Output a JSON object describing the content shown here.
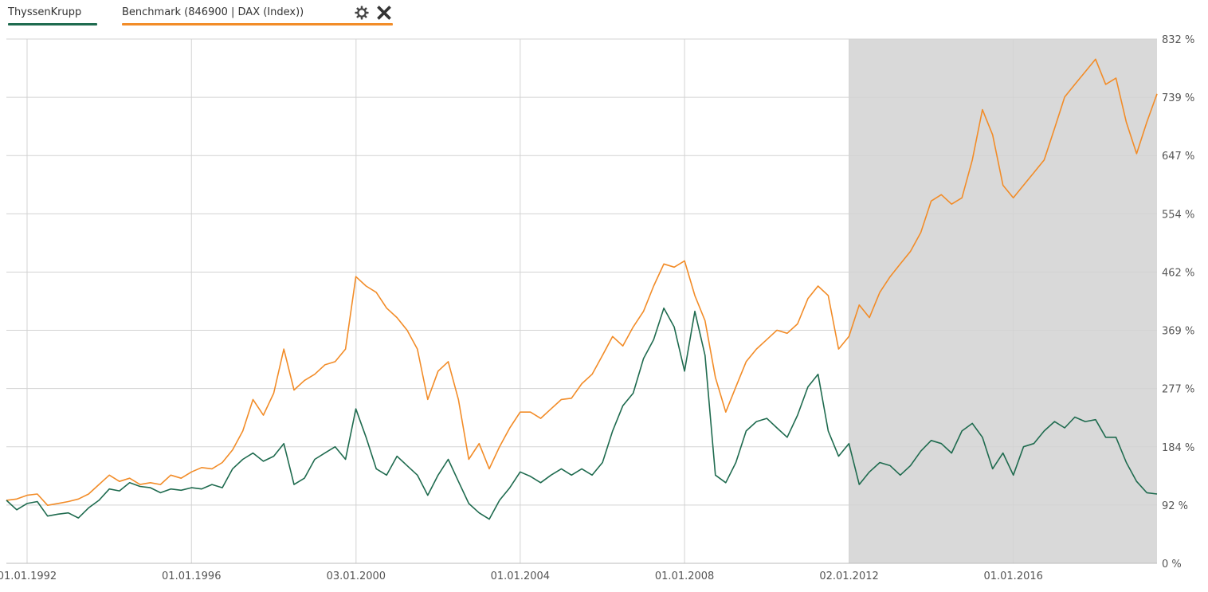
{
  "legend": {
    "series1_label": "ThyssenKrupp",
    "series2_label": "Benchmark (846900 | DAX (Index))",
    "settings_icon": "gear-icon",
    "close_icon": "close-icon"
  },
  "colors": {
    "thyssen": "#1f6b4f",
    "benchmark": "#f28c28",
    "shade": "#d9d9d9",
    "grid": "#d3d3d3"
  },
  "chart_data": {
    "type": "line",
    "xlabel": "",
    "ylabel": "",
    "y_unit": "%",
    "ylim": [
      0,
      832
    ],
    "y_ticks": [
      "0 %",
      "92 %",
      "184 %",
      "277 %",
      "369 %",
      "462 %",
      "554 %",
      "647 %",
      "739 %",
      "832 %"
    ],
    "x_ticks": [
      {
        "date": "1992-01-01",
        "label": "01.01.1992"
      },
      {
        "date": "1996-01-01",
        "label": "01.01.1996"
      },
      {
        "date": "2000-01-03",
        "label": "03.01.2000"
      },
      {
        "date": "2004-01-01",
        "label": "01.01.2004"
      },
      {
        "date": "2008-01-01",
        "label": "01.01.2008"
      },
      {
        "date": "2012-01-02",
        "label": "02.01.2012"
      },
      {
        "date": "2016-01-01",
        "label": "01.01.2016"
      }
    ],
    "xlim": [
      "1991-07-01",
      "2019-07-01"
    ],
    "shaded_range": [
      "2012-01-02",
      "2019-07-01"
    ],
    "grid": true,
    "legend_position": "top-left",
    "series": [
      {
        "name": "ThyssenKrupp",
        "color": "#1f6b4f",
        "points": [
          [
            "1991-07",
            100
          ],
          [
            "1991-10",
            85
          ],
          [
            "1992-01",
            95
          ],
          [
            "1992-04",
            98
          ],
          [
            "1992-07",
            75
          ],
          [
            "1992-10",
            78
          ],
          [
            "1993-01",
            80
          ],
          [
            "1993-04",
            72
          ],
          [
            "1993-07",
            88
          ],
          [
            "1993-10",
            100
          ],
          [
            "1994-01",
            118
          ],
          [
            "1994-04",
            115
          ],
          [
            "1994-07",
            128
          ],
          [
            "1994-10",
            122
          ],
          [
            "1995-01",
            120
          ],
          [
            "1995-04",
            112
          ],
          [
            "1995-07",
            118
          ],
          [
            "1995-10",
            116
          ],
          [
            "1996-01",
            120
          ],
          [
            "1996-04",
            118
          ],
          [
            "1996-07",
            125
          ],
          [
            "1996-10",
            120
          ],
          [
            "1997-01",
            150
          ],
          [
            "1997-04",
            165
          ],
          [
            "1997-07",
            175
          ],
          [
            "1997-10",
            162
          ],
          [
            "1998-01",
            170
          ],
          [
            "1998-04",
            190
          ],
          [
            "1998-07",
            125
          ],
          [
            "1998-10",
            135
          ],
          [
            "1999-01",
            165
          ],
          [
            "1999-04",
            175
          ],
          [
            "1999-07",
            185
          ],
          [
            "1999-10",
            165
          ],
          [
            "2000-01",
            245
          ],
          [
            "2000-04",
            200
          ],
          [
            "2000-07",
            150
          ],
          [
            "2000-10",
            140
          ],
          [
            "2001-01",
            170
          ],
          [
            "2001-04",
            155
          ],
          [
            "2001-07",
            140
          ],
          [
            "2001-10",
            108
          ],
          [
            "2002-01",
            140
          ],
          [
            "2002-04",
            165
          ],
          [
            "2002-07",
            130
          ],
          [
            "2002-10",
            95
          ],
          [
            "2003-01",
            80
          ],
          [
            "2003-04",
            70
          ],
          [
            "2003-07",
            100
          ],
          [
            "2003-10",
            120
          ],
          [
            "2004-01",
            145
          ],
          [
            "2004-04",
            138
          ],
          [
            "2004-07",
            128
          ],
          [
            "2004-10",
            140
          ],
          [
            "2005-01",
            150
          ],
          [
            "2005-04",
            140
          ],
          [
            "2005-07",
            150
          ],
          [
            "2005-10",
            140
          ],
          [
            "2006-01",
            160
          ],
          [
            "2006-04",
            210
          ],
          [
            "2006-07",
            250
          ],
          [
            "2006-10",
            270
          ],
          [
            "2007-01",
            325
          ],
          [
            "2007-04",
            355
          ],
          [
            "2007-07",
            405
          ],
          [
            "2007-10",
            375
          ],
          [
            "2008-01",
            305
          ],
          [
            "2008-04",
            400
          ],
          [
            "2008-07",
            330
          ],
          [
            "2008-10",
            140
          ],
          [
            "2009-01",
            128
          ],
          [
            "2009-04",
            160
          ],
          [
            "2009-07",
            210
          ],
          [
            "2009-10",
            225
          ],
          [
            "2010-01",
            230
          ],
          [
            "2010-04",
            215
          ],
          [
            "2010-07",
            200
          ],
          [
            "2010-10",
            235
          ],
          [
            "2011-01",
            280
          ],
          [
            "2011-04",
            300
          ],
          [
            "2011-07",
            210
          ],
          [
            "2011-10",
            170
          ],
          [
            "2012-01",
            190
          ],
          [
            "2012-04",
            125
          ],
          [
            "2012-07",
            145
          ],
          [
            "2012-10",
            160
          ],
          [
            "2013-01",
            155
          ],
          [
            "2013-04",
            140
          ],
          [
            "2013-07",
            155
          ],
          [
            "2013-10",
            178
          ],
          [
            "2014-01",
            195
          ],
          [
            "2014-04",
            190
          ],
          [
            "2014-07",
            175
          ],
          [
            "2014-10",
            210
          ],
          [
            "2015-01",
            222
          ],
          [
            "2015-04",
            200
          ],
          [
            "2015-07",
            150
          ],
          [
            "2015-10",
            175
          ],
          [
            "2016-01",
            140
          ],
          [
            "2016-04",
            185
          ],
          [
            "2016-07",
            190
          ],
          [
            "2016-10",
            210
          ],
          [
            "2017-01",
            225
          ],
          [
            "2017-04",
            215
          ],
          [
            "2017-07",
            232
          ],
          [
            "2017-10",
            225
          ],
          [
            "2018-01",
            228
          ],
          [
            "2018-04",
            200
          ],
          [
            "2018-07",
            200
          ],
          [
            "2018-10",
            160
          ],
          [
            "2019-01",
            130
          ],
          [
            "2019-04",
            112
          ],
          [
            "2019-07",
            110
          ]
        ]
      },
      {
        "name": "Benchmark (846900 | DAX (Index))",
        "color": "#f28c28",
        "points": [
          [
            "1991-07",
            100
          ],
          [
            "1991-10",
            102
          ],
          [
            "1992-01",
            108
          ],
          [
            "1992-04",
            110
          ],
          [
            "1992-07",
            92
          ],
          [
            "1992-10",
            95
          ],
          [
            "1993-01",
            98
          ],
          [
            "1993-04",
            102
          ],
          [
            "1993-07",
            110
          ],
          [
            "1993-10",
            125
          ],
          [
            "1994-01",
            140
          ],
          [
            "1994-04",
            130
          ],
          [
            "1994-07",
            135
          ],
          [
            "1994-10",
            125
          ],
          [
            "1995-01",
            128
          ],
          [
            "1995-04",
            125
          ],
          [
            "1995-07",
            140
          ],
          [
            "1995-10",
            135
          ],
          [
            "1996-01",
            145
          ],
          [
            "1996-04",
            152
          ],
          [
            "1996-07",
            150
          ],
          [
            "1996-10",
            160
          ],
          [
            "1997-01",
            180
          ],
          [
            "1997-04",
            210
          ],
          [
            "1997-07",
            260
          ],
          [
            "1997-10",
            235
          ],
          [
            "1998-01",
            270
          ],
          [
            "1998-04",
            340
          ],
          [
            "1998-07",
            275
          ],
          [
            "1998-10",
            290
          ],
          [
            "1999-01",
            300
          ],
          [
            "1999-04",
            315
          ],
          [
            "1999-07",
            320
          ],
          [
            "1999-10",
            340
          ],
          [
            "2000-01",
            455
          ],
          [
            "2000-04",
            440
          ],
          [
            "2000-07",
            430
          ],
          [
            "2000-10",
            405
          ],
          [
            "2001-01",
            390
          ],
          [
            "2001-04",
            370
          ],
          [
            "2001-07",
            340
          ],
          [
            "2001-10",
            260
          ],
          [
            "2002-01",
            305
          ],
          [
            "2002-04",
            320
          ],
          [
            "2002-07",
            260
          ],
          [
            "2002-10",
            165
          ],
          [
            "2003-01",
            190
          ],
          [
            "2003-04",
            150
          ],
          [
            "2003-07",
            185
          ],
          [
            "2003-10",
            215
          ],
          [
            "2004-01",
            240
          ],
          [
            "2004-04",
            240
          ],
          [
            "2004-07",
            230
          ],
          [
            "2004-10",
            245
          ],
          [
            "2005-01",
            260
          ],
          [
            "2005-04",
            262
          ],
          [
            "2005-07",
            285
          ],
          [
            "2005-10",
            300
          ],
          [
            "2006-01",
            330
          ],
          [
            "2006-04",
            360
          ],
          [
            "2006-07",
            345
          ],
          [
            "2006-10",
            375
          ],
          [
            "2007-01",
            400
          ],
          [
            "2007-04",
            440
          ],
          [
            "2007-07",
            475
          ],
          [
            "2007-10",
            470
          ],
          [
            "2008-01",
            480
          ],
          [
            "2008-04",
            425
          ],
          [
            "2008-07",
            385
          ],
          [
            "2008-10",
            295
          ],
          [
            "2009-01",
            240
          ],
          [
            "2009-04",
            280
          ],
          [
            "2009-07",
            320
          ],
          [
            "2009-10",
            340
          ],
          [
            "2010-01",
            355
          ],
          [
            "2010-04",
            370
          ],
          [
            "2010-07",
            365
          ],
          [
            "2010-10",
            380
          ],
          [
            "2011-01",
            420
          ],
          [
            "2011-04",
            440
          ],
          [
            "2011-07",
            425
          ],
          [
            "2011-10",
            340
          ],
          [
            "2012-01",
            360
          ],
          [
            "2012-04",
            410
          ],
          [
            "2012-07",
            390
          ],
          [
            "2012-10",
            430
          ],
          [
            "2013-01",
            455
          ],
          [
            "2013-04",
            475
          ],
          [
            "2013-07",
            495
          ],
          [
            "2013-10",
            525
          ],
          [
            "2014-01",
            575
          ],
          [
            "2014-04",
            585
          ],
          [
            "2014-07",
            570
          ],
          [
            "2014-10",
            580
          ],
          [
            "2015-01",
            640
          ],
          [
            "2015-04",
            720
          ],
          [
            "2015-07",
            680
          ],
          [
            "2015-10",
            600
          ],
          [
            "2016-01",
            580
          ],
          [
            "2016-04",
            600
          ],
          [
            "2016-07",
            620
          ],
          [
            "2016-10",
            640
          ],
          [
            "2017-01",
            690
          ],
          [
            "2017-04",
            740
          ],
          [
            "2017-07",
            760
          ],
          [
            "2017-10",
            780
          ],
          [
            "2018-01",
            800
          ],
          [
            "2018-04",
            760
          ],
          [
            "2018-07",
            770
          ],
          [
            "2018-10",
            700
          ],
          [
            "2019-01",
            650
          ],
          [
            "2019-04",
            700
          ],
          [
            "2019-07",
            745
          ]
        ]
      }
    ]
  }
}
